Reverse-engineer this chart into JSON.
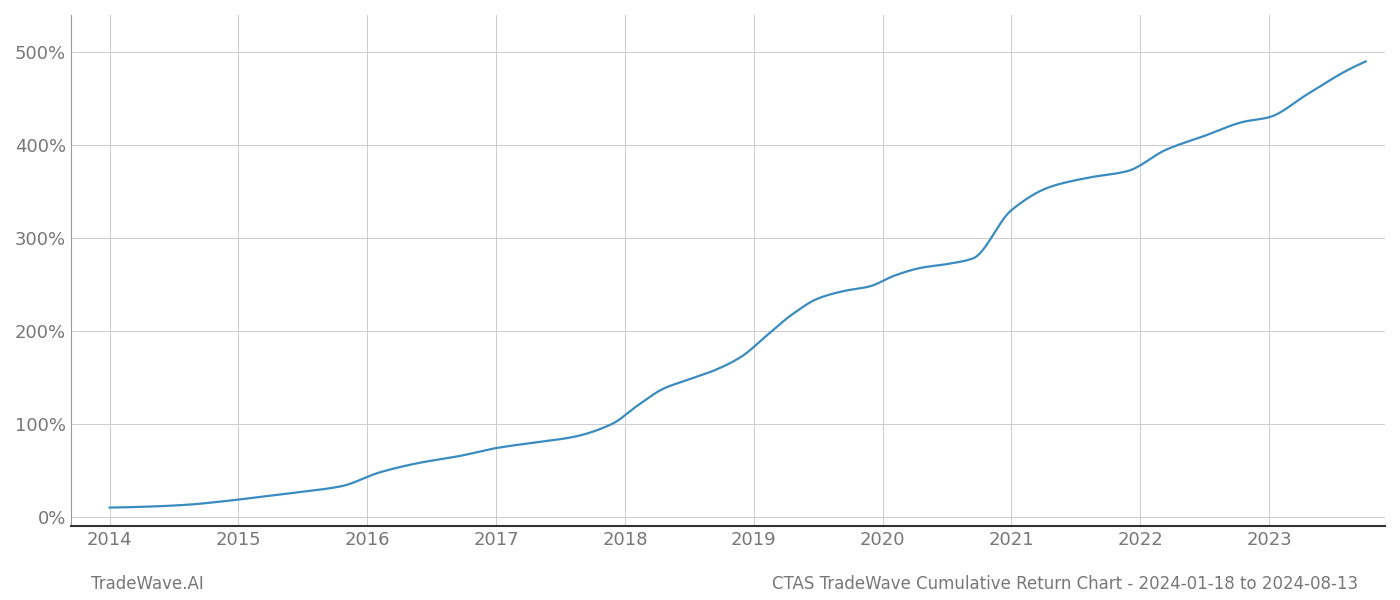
{
  "title": "CTAS TradeWave Cumulative Return Chart - 2024-01-18 to 2024-08-13",
  "footer_left": "TradeWave.AI",
  "line_color": "#3a8bbf",
  "line_width": 1.6,
  "background_color": "#ffffff",
  "grid_color": "#cccccc",
  "x_years": [
    2014.0,
    2014.3,
    2014.6,
    2014.9,
    2015.2,
    2015.5,
    2015.8,
    2016.1,
    2016.4,
    2016.7,
    2017.0,
    2017.3,
    2017.6,
    2017.9,
    2018.1,
    2018.3,
    2018.5,
    2018.7,
    2018.9,
    2019.1,
    2019.3,
    2019.5,
    2019.7,
    2019.9,
    2020.1,
    2020.3,
    2020.5,
    2020.7,
    2021.0,
    2021.3,
    2021.6,
    2021.9,
    2022.2,
    2022.5,
    2022.8,
    2023.0,
    2023.3,
    2023.6,
    2023.75
  ],
  "y_values": [
    10,
    11,
    13,
    17,
    22,
    27,
    33,
    48,
    58,
    65,
    74,
    80,
    86,
    100,
    120,
    138,
    148,
    158,
    172,
    195,
    218,
    235,
    243,
    248,
    260,
    268,
    272,
    278,
    330,
    355,
    365,
    372,
    395,
    410,
    425,
    430,
    455,
    480,
    490
  ],
  "xlim": [
    2013.7,
    2023.9
  ],
  "ylim": [
    -10,
    540
  ],
  "yticks": [
    0,
    100,
    200,
    300,
    400,
    500
  ],
  "xticks": [
    2014,
    2015,
    2016,
    2017,
    2018,
    2019,
    2020,
    2021,
    2022,
    2023
  ],
  "tick_label_color": "#777777",
  "tick_fontsize": 13,
  "footer_fontsize": 12,
  "title_fontsize": 12
}
